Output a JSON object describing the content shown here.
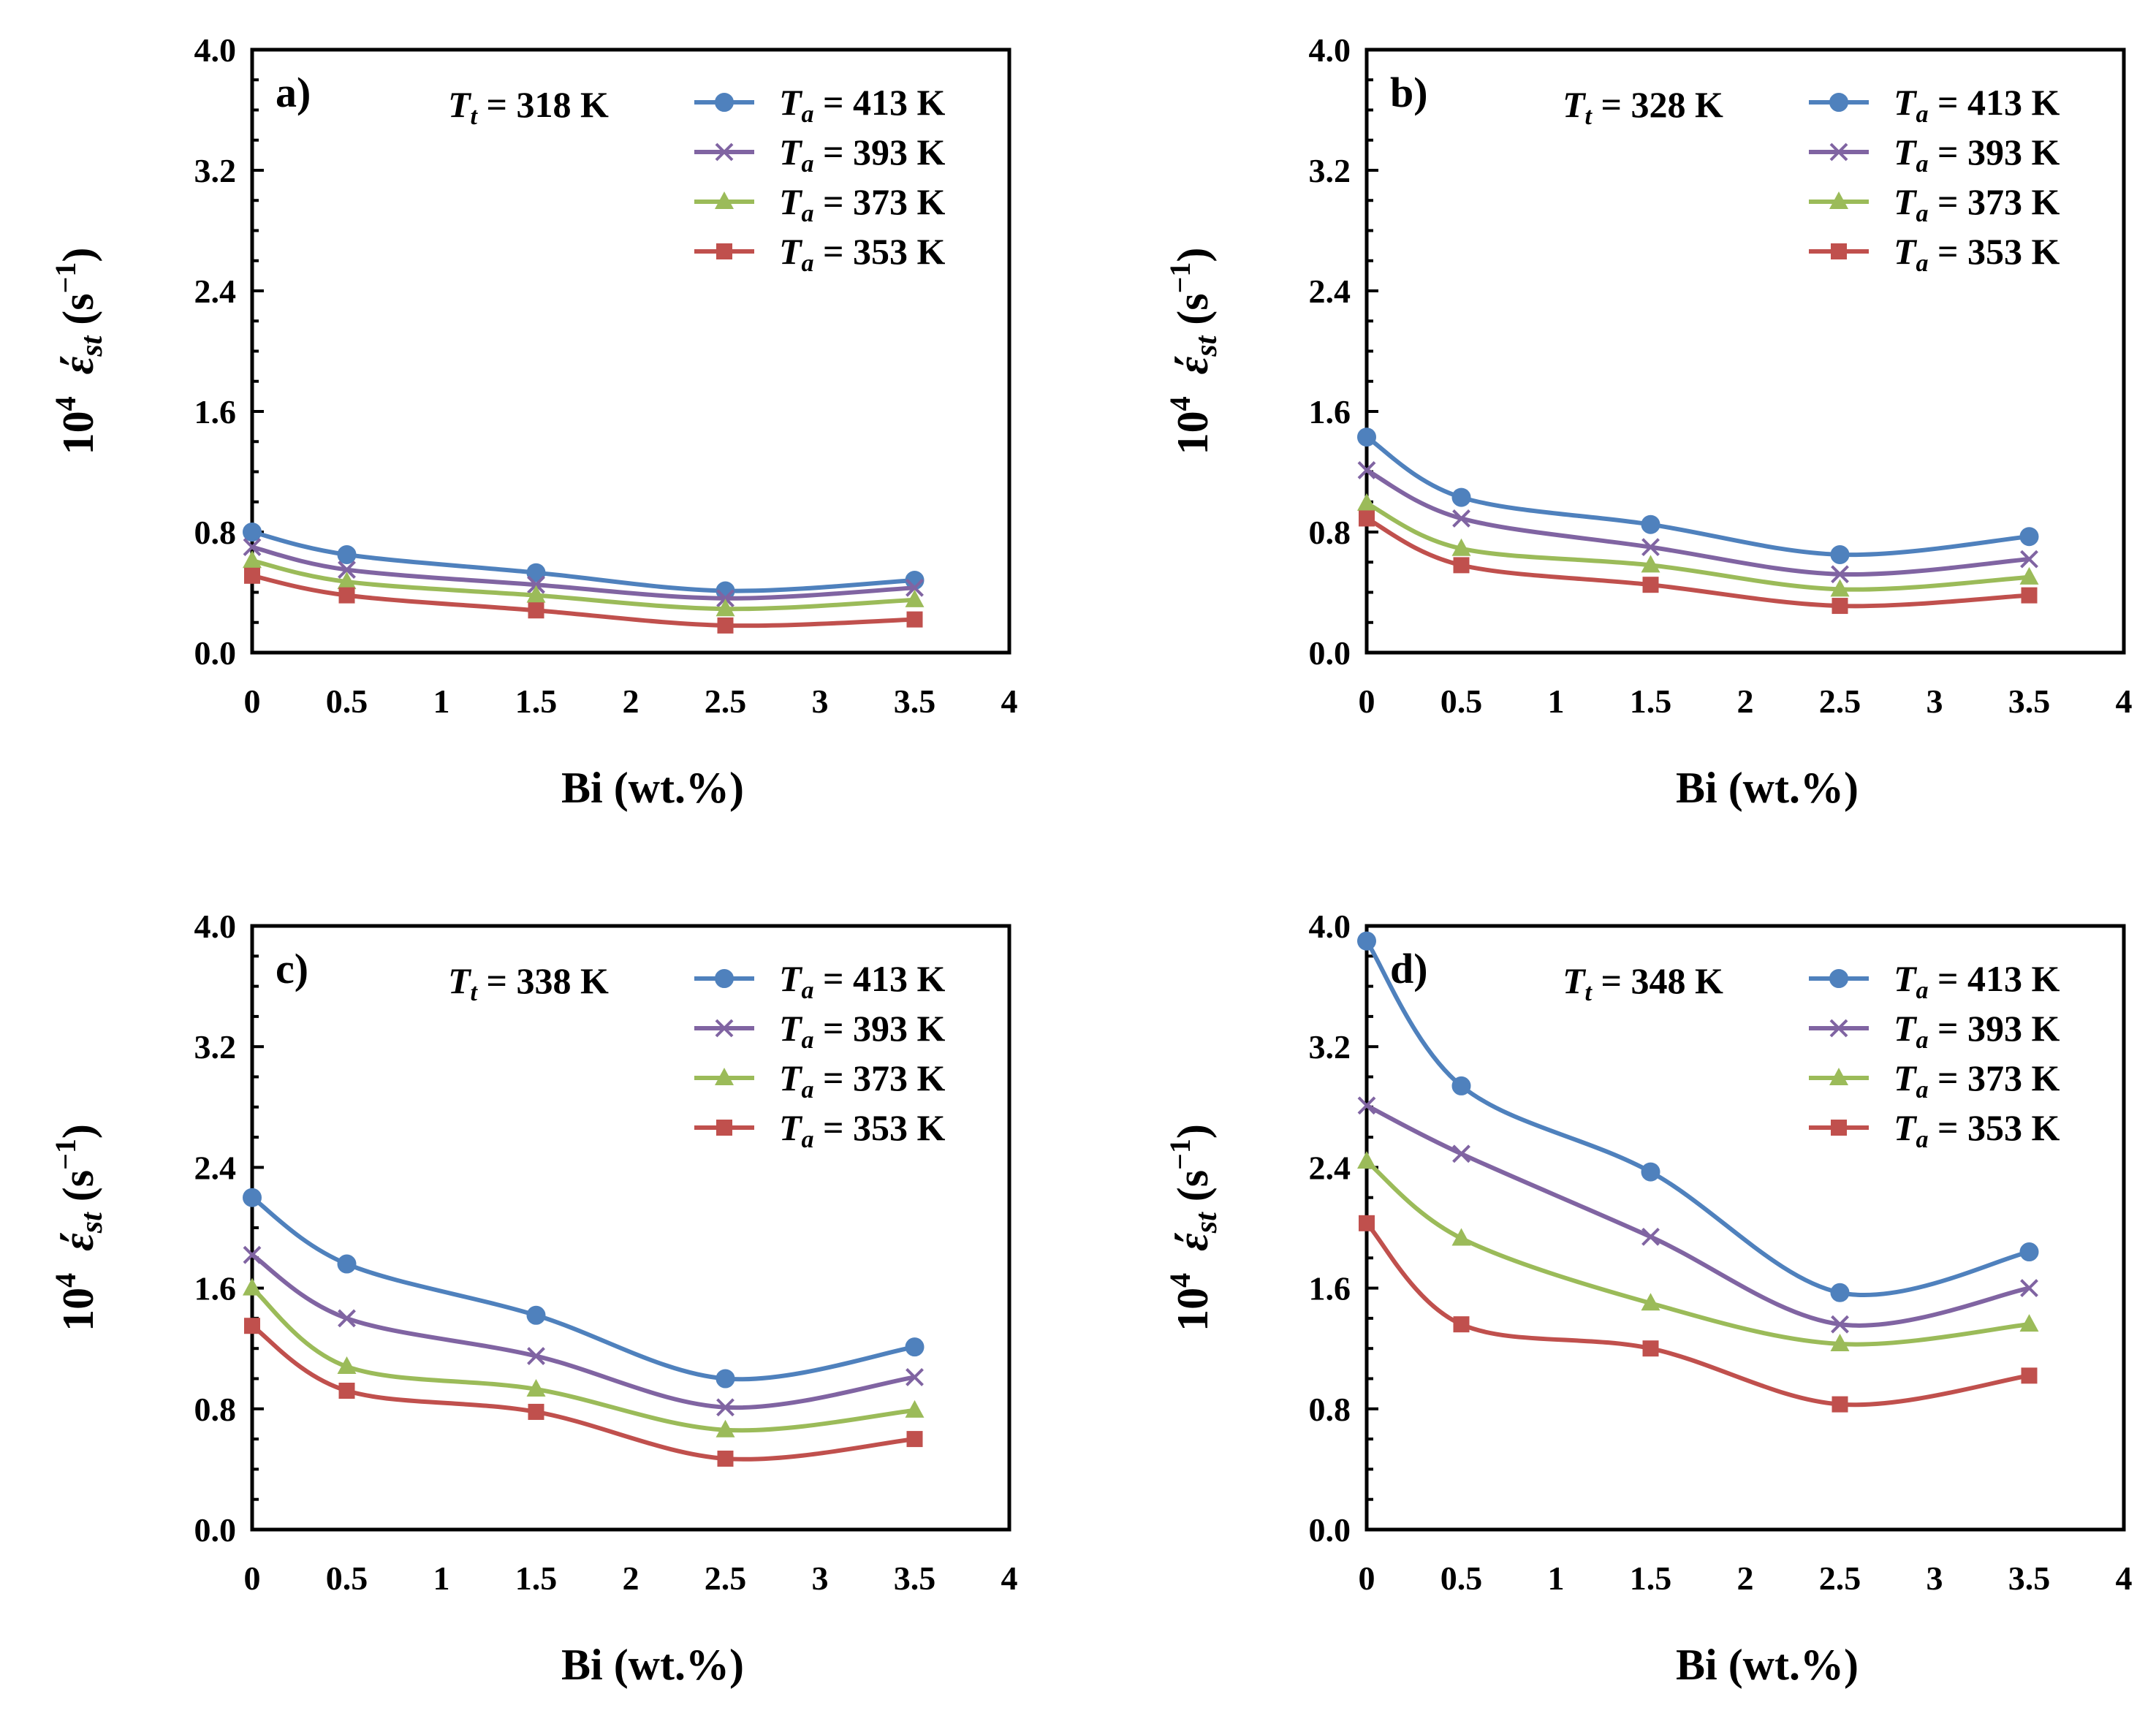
{
  "chart_data": [
    {
      "type": "line",
      "panel_label": "a)",
      "annotation": {
        "italic": "T",
        "sub": "t",
        "text": " = 318 K"
      },
      "xlabel": "Bi (wt.%)",
      "ylabel": {
        "prefix": "10",
        "power": "4",
        "symbol": "έ",
        "sub": "st",
        "unit": " (s",
        "unit_power": "−1",
        "close": ")"
      },
      "xlim": [
        0,
        4
      ],
      "ylim": [
        0,
        4
      ],
      "xticks": [
        "0",
        "0.5",
        "1",
        "1.5",
        "2",
        "2.5",
        "3",
        "3.5",
        "4"
      ],
      "yticks": [
        "0.0",
        "0.8",
        "1.6",
        "2.4",
        "3.2",
        "4.0"
      ],
      "x": [
        0,
        0.5,
        1.5,
        2.5,
        3.5
      ],
      "series": [
        {
          "name": "Ta = 413 K",
          "label_italic": "T",
          "label_sub": "a",
          "label_text": " = 413 K",
          "color": "#4f81bd",
          "marker": "circle",
          "values": [
            0.8,
            0.65,
            0.53,
            0.41,
            0.48
          ]
        },
        {
          "name": "Ta = 393 K",
          "label_italic": "T",
          "label_sub": "a",
          "label_text": " = 393 K",
          "color": "#8064a2",
          "marker": "x",
          "values": [
            0.7,
            0.55,
            0.45,
            0.36,
            0.43
          ]
        },
        {
          "name": "Ta = 373 K",
          "label_italic": "T",
          "label_sub": "a",
          "label_text": " = 373 K",
          "color": "#9bbb59",
          "marker": "triangle",
          "values": [
            0.61,
            0.47,
            0.38,
            0.29,
            0.35
          ]
        },
        {
          "name": "Ta = 353 K",
          "label_italic": "T",
          "label_sub": "a",
          "label_text": " = 353 K",
          "color": "#c0504d",
          "marker": "square",
          "values": [
            0.51,
            0.38,
            0.28,
            0.18,
            0.22
          ]
        }
      ]
    },
    {
      "type": "line",
      "panel_label": "b)",
      "annotation": {
        "italic": "T",
        "sub": "t",
        "text": " = 328 K"
      },
      "xlabel": "Bi (wt.%)",
      "ylabel": {
        "prefix": "10",
        "power": "4",
        "symbol": "έ",
        "sub": "st",
        "unit": " (s",
        "unit_power": "−1",
        "close": ")"
      },
      "xlim": [
        0,
        4
      ],
      "ylim": [
        0,
        4
      ],
      "xticks": [
        "0",
        "0.5",
        "1",
        "1.5",
        "2",
        "2.5",
        "3",
        "3.5",
        "4"
      ],
      "yticks": [
        "0.0",
        "0.8",
        "1.6",
        "2.4",
        "3.2",
        "4.0"
      ],
      "x": [
        0,
        0.5,
        1.5,
        2.5,
        3.5
      ],
      "series": [
        {
          "name": "Ta = 413 K",
          "label_italic": "T",
          "label_sub": "a",
          "label_text": " = 413 K",
          "color": "#4f81bd",
          "marker": "circle",
          "values": [
            1.43,
            1.03,
            0.85,
            0.65,
            0.77
          ]
        },
        {
          "name": "Ta = 393 K",
          "label_italic": "T",
          "label_sub": "a",
          "label_text": " = 393 K",
          "color": "#8064a2",
          "marker": "x",
          "values": [
            1.21,
            0.89,
            0.7,
            0.52,
            0.62
          ]
        },
        {
          "name": "Ta = 373 K",
          "label_italic": "T",
          "label_sub": "a",
          "label_text": " = 373 K",
          "color": "#9bbb59",
          "marker": "triangle",
          "values": [
            0.99,
            0.69,
            0.58,
            0.42,
            0.5
          ]
        },
        {
          "name": "Ta = 353 K",
          "label_italic": "T",
          "label_sub": "a",
          "label_text": " = 353 K",
          "color": "#c0504d",
          "marker": "square",
          "values": [
            0.89,
            0.58,
            0.45,
            0.31,
            0.38
          ]
        }
      ]
    },
    {
      "type": "line",
      "panel_label": "c)",
      "annotation": {
        "italic": "T",
        "sub": "t",
        "text": " = 338 K"
      },
      "xlabel": "Bi (wt.%)",
      "ylabel": {
        "prefix": "10",
        "power": "4",
        "symbol": "έ",
        "sub": "st",
        "unit": " (s",
        "unit_power": "−1",
        "close": ")"
      },
      "xlim": [
        0,
        4
      ],
      "ylim": [
        0,
        4
      ],
      "xticks": [
        "0",
        "0.5",
        "1",
        "1.5",
        "2",
        "2.5",
        "3",
        "3.5",
        "4"
      ],
      "yticks": [
        "0.0",
        "0.8",
        "1.6",
        "2.4",
        "3.2",
        "4.0"
      ],
      "x": [
        0,
        0.5,
        1.5,
        2.5,
        3.5
      ],
      "series": [
        {
          "name": "Ta = 413 K",
          "label_italic": "T",
          "label_sub": "a",
          "label_text": " = 413 K",
          "color": "#4f81bd",
          "marker": "circle",
          "values": [
            2.2,
            1.76,
            1.42,
            1.0,
            1.21
          ]
        },
        {
          "name": "Ta = 393 K",
          "label_italic": "T",
          "label_sub": "a",
          "label_text": " = 393 K",
          "color": "#8064a2",
          "marker": "x",
          "values": [
            1.82,
            1.4,
            1.15,
            0.81,
            1.01
          ]
        },
        {
          "name": "Ta = 373 K",
          "label_italic": "T",
          "label_sub": "a",
          "label_text": " = 373 K",
          "color": "#9bbb59",
          "marker": "triangle",
          "values": [
            1.6,
            1.08,
            0.93,
            0.66,
            0.79
          ]
        },
        {
          "name": "Ta = 353 K",
          "label_italic": "T",
          "label_sub": "a",
          "label_text": " = 353 K",
          "color": "#c0504d",
          "marker": "square",
          "values": [
            1.35,
            0.92,
            0.78,
            0.47,
            0.6
          ]
        }
      ]
    },
    {
      "type": "line",
      "panel_label": "d)",
      "annotation": {
        "italic": "T",
        "sub": "t",
        "text": " = 348 K"
      },
      "xlabel": "Bi (wt.%)",
      "ylabel": {
        "prefix": "10",
        "power": "4",
        "symbol": "έ",
        "sub": "st",
        "unit": " (s",
        "unit_power": "−1",
        "close": ")"
      },
      "xlim": [
        0,
        4
      ],
      "ylim": [
        0,
        4
      ],
      "xticks": [
        "0",
        "0.5",
        "1",
        "1.5",
        "2",
        "2.5",
        "3",
        "3.5",
        "4"
      ],
      "yticks": [
        "0.0",
        "0.8",
        "1.6",
        "2.4",
        "3.2",
        "4.0"
      ],
      "x": [
        0,
        0.5,
        1.5,
        2.5,
        3.5
      ],
      "series": [
        {
          "name": "Ta = 413 K",
          "label_italic": "T",
          "label_sub": "a",
          "label_text": " = 413 K",
          "color": "#4f81bd",
          "marker": "circle",
          "values": [
            3.9,
            2.94,
            2.37,
            1.57,
            1.84
          ]
        },
        {
          "name": "Ta = 393 K",
          "label_italic": "T",
          "label_sub": "a",
          "label_text": " = 393 K",
          "color": "#8064a2",
          "marker": "x",
          "values": [
            2.81,
            2.49,
            1.94,
            1.36,
            1.6
          ]
        },
        {
          "name": "Ta = 373 K",
          "label_italic": "T",
          "label_sub": "a",
          "label_text": " = 373 K",
          "color": "#9bbb59",
          "marker": "triangle",
          "values": [
            2.44,
            1.93,
            1.5,
            1.23,
            1.36
          ]
        },
        {
          "name": "Ta = 353 K",
          "label_italic": "T",
          "label_sub": "a",
          "label_text": " = 353 K",
          "color": "#c0504d",
          "marker": "square",
          "values": [
            2.03,
            1.36,
            1.2,
            0.83,
            1.02
          ]
        }
      ]
    }
  ]
}
